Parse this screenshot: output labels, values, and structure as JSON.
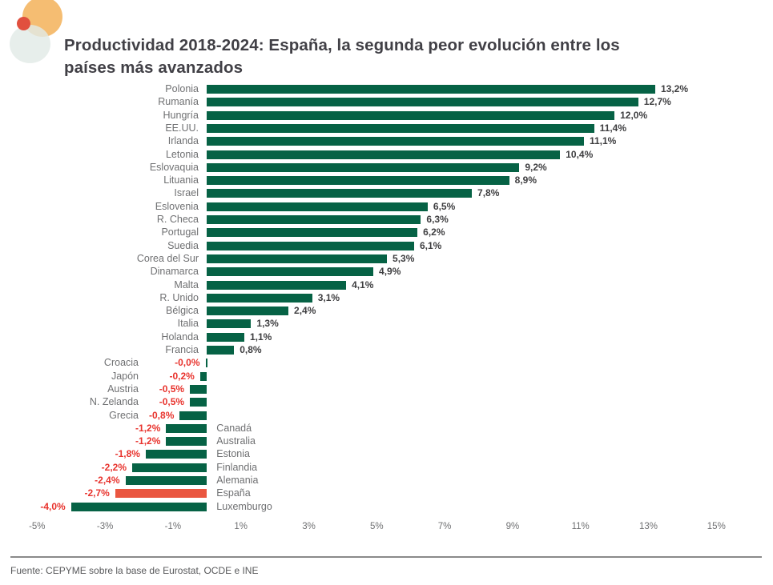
{
  "header": {
    "title_line1": "Productividad 2018-2024: España, la segunda peor evolución entre los",
    "title_line2": "países más avanzados"
  },
  "colors": {
    "bar_positive_green": "#066245",
    "bar_espana_orange": "#EA5640",
    "value_negative_red": "#E8332D",
    "value_positive_dark": "#3E3E40",
    "axis_label_gray": "#6F7072",
    "logo_orange": "#F5BD72",
    "logo_red": "#E1503E",
    "logo_teal": "#E2EAE6"
  },
  "chart_data": {
    "type": "bar",
    "orientation": "horizontal",
    "title": "Productividad 2018-2024: España, la segunda peor evolución entre los países más avanzados",
    "unit": "percent",
    "xlim": [
      -5,
      15
    ],
    "x_tick_values": [
      -5,
      -3,
      -1,
      1,
      3,
      5,
      7,
      9,
      11,
      13,
      15
    ],
    "x_tick_labels": [
      "-5%",
      "-3%",
      "-1%",
      "1%",
      "3%",
      "5%",
      "7%",
      "9%",
      "11%",
      "13%",
      "15%"
    ],
    "grid": false,
    "legend_position": "none",
    "highlight_category": "España",
    "rows": [
      {
        "name": "Polonia",
        "value": 13.2,
        "label": "13,2%"
      },
      {
        "name": "Rumanía",
        "value": 12.7,
        "label": "12,7%"
      },
      {
        "name": "Hungría",
        "value": 12.0,
        "label": "12,0%"
      },
      {
        "name": "EE.UU.",
        "value": 11.4,
        "label": "11,4%"
      },
      {
        "name": "Irlanda",
        "value": 11.1,
        "label": "11,1%"
      },
      {
        "name": "Letonia",
        "value": 10.4,
        "label": "10,4%"
      },
      {
        "name": "Eslovaquia",
        "value": 9.2,
        "label": "9,2%"
      },
      {
        "name": "Lituania",
        "value": 8.9,
        "label": "8,9%"
      },
      {
        "name": "Israel",
        "value": 7.8,
        "label": "7,8%"
      },
      {
        "name": "Eslovenia",
        "value": 6.5,
        "label": "6,5%"
      },
      {
        "name": "R. Checa",
        "value": 6.3,
        "label": "6,3%"
      },
      {
        "name": "Portugal",
        "value": 6.2,
        "label": "6,2%"
      },
      {
        "name": "Suedia",
        "value": 6.1,
        "label": "6,1%"
      },
      {
        "name": "Corea del Sur",
        "value": 5.3,
        "label": "5,3%"
      },
      {
        "name": "Dinamarca",
        "value": 4.9,
        "label": "4,9%"
      },
      {
        "name": "Malta",
        "value": 4.1,
        "label": "4,1%"
      },
      {
        "name": "R. Unido",
        "value": 3.1,
        "label": "3,1%"
      },
      {
        "name": "Bélgica",
        "value": 2.4,
        "label": "2,4%"
      },
      {
        "name": "Italia",
        "value": 1.3,
        "label": "1,3%"
      },
      {
        "name": "Holanda",
        "value": 1.1,
        "label": "1,1%"
      },
      {
        "name": "Francia",
        "value": 0.8,
        "label": "0,8%"
      },
      {
        "name": "Croacia",
        "value": -0.0,
        "label": "-0,0%"
      },
      {
        "name": "Japón",
        "value": -0.2,
        "label": "-0,2%"
      },
      {
        "name": "Austria",
        "value": -0.5,
        "label": "-0,5%"
      },
      {
        "name": "N. Zelanda",
        "value": -0.5,
        "label": "-0,5%"
      },
      {
        "name": "Grecia",
        "value": -0.8,
        "label": "-0,8%"
      },
      {
        "name": "Canadá",
        "value": -1.2,
        "label": "-1,2%",
        "name_side": "right"
      },
      {
        "name": "Australia",
        "value": -1.2,
        "label": "-1,2%",
        "name_side": "right"
      },
      {
        "name": "Estonia",
        "value": -1.8,
        "label": "-1,8%",
        "name_side": "right"
      },
      {
        "name": "Finlandia",
        "value": -2.2,
        "label": "-2,2%",
        "name_side": "right"
      },
      {
        "name": "Alemania",
        "value": -2.4,
        "label": "-2,4%",
        "name_side": "right"
      },
      {
        "name": "España",
        "value": -2.7,
        "label": "-2,7%",
        "name_side": "right"
      },
      {
        "name": "Luxemburgo",
        "value": -4.0,
        "label": "-4,0%",
        "name_side": "right"
      }
    ]
  },
  "footer": {
    "source": "Fuente: CEPYME sobre la base de Eurostat, OCDE e INE"
  }
}
